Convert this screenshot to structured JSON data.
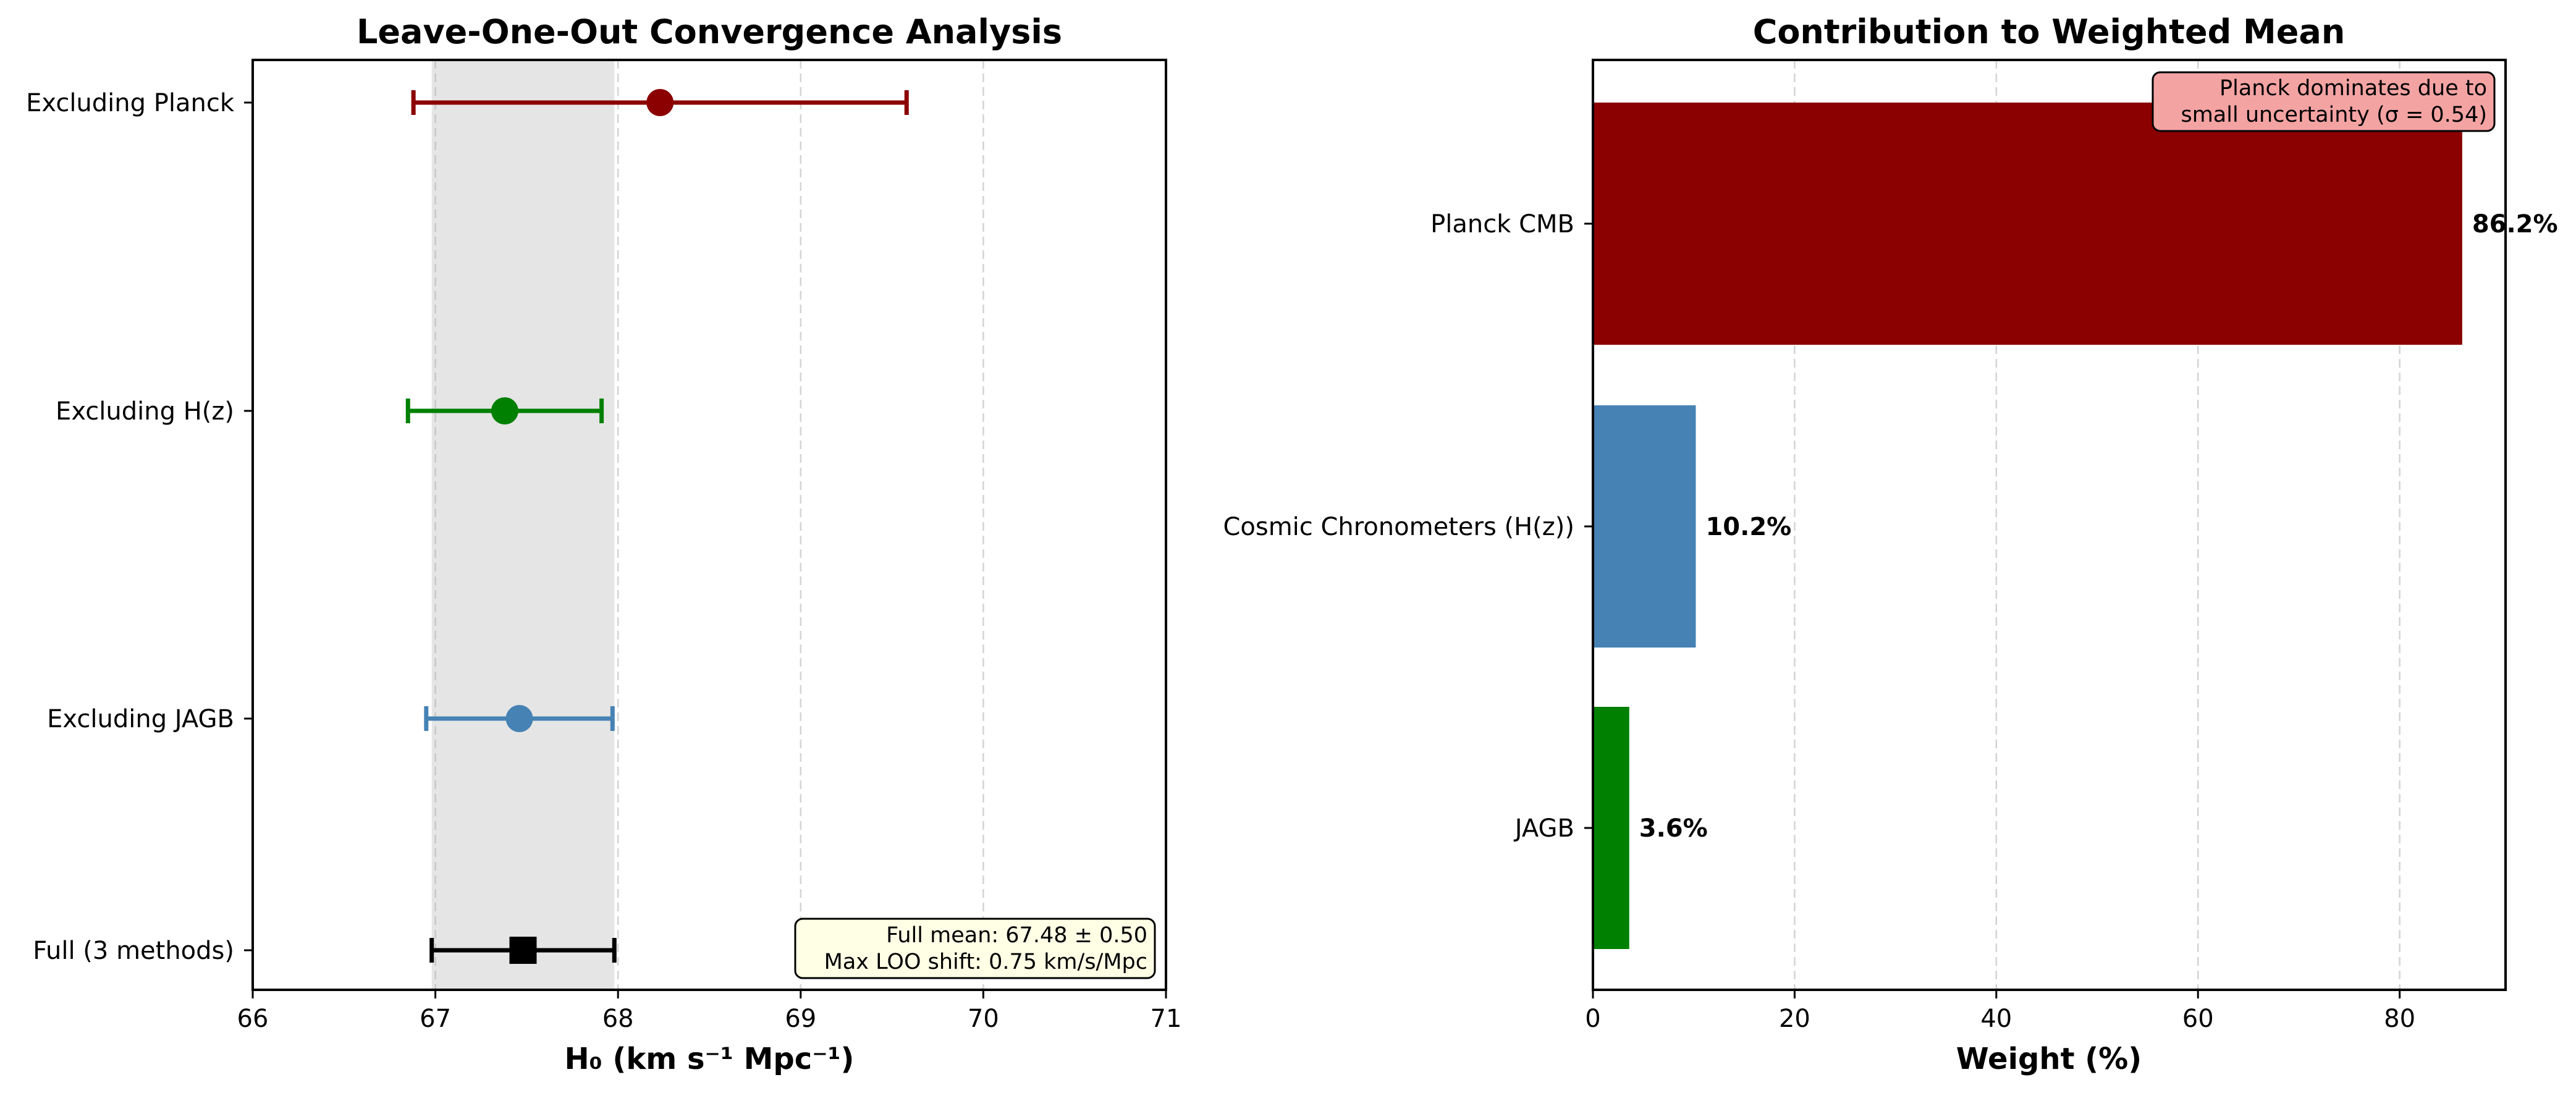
{
  "chart_data": [
    {
      "type": "scatter",
      "title": "Leave-One-Out Convergence Analysis",
      "xlabel": "H₀ (km s⁻¹ Mpc⁻¹)",
      "ylabel": "",
      "xlim": [
        66,
        71
      ],
      "xticks": [
        "66",
        "67",
        "68",
        "69",
        "70",
        "71"
      ],
      "grid": "x-dashed",
      "band": {
        "from": 66.98,
        "to": 67.98,
        "color": "#e5e5e5"
      },
      "points": [
        {
          "label": "Excluding Planck",
          "value": 68.23,
          "low": 66.88,
          "high": 69.58,
          "color": "#8b0000",
          "marker": "circle"
        },
        {
          "label": "Excluding H(z)",
          "value": 67.38,
          "low": 66.85,
          "high": 67.91,
          "color": "#008000",
          "marker": "circle"
        },
        {
          "label": "Excluding JAGB",
          "value": 67.46,
          "low": 66.95,
          "high": 67.97,
          "color": "#4682b4",
          "marker": "circle"
        },
        {
          "label": "Full (3 methods)",
          "value": 67.48,
          "low": 66.98,
          "high": 67.98,
          "color": "#000000",
          "marker": "square"
        }
      ],
      "annotation": {
        "lines": [
          "Full mean: 67.48 ± 0.50",
          "Max LOO shift: 0.75 km/s/Mpc"
        ],
        "placement": "bottom-right",
        "bg": "#ffffe6"
      }
    },
    {
      "type": "bar",
      "orientation": "horizontal",
      "title": "Contribution to Weighted Mean",
      "xlabel": "Weight (%)",
      "ylabel": "",
      "xlim": [
        0,
        90.5
      ],
      "xticks": [
        0,
        20,
        40,
        60,
        80
      ],
      "grid": "x-dashed",
      "categories": [
        "Planck CMB",
        "Cosmic Chronometers (H(z))",
        "JAGB"
      ],
      "values": [
        86.2,
        10.2,
        3.6
      ],
      "value_labels": [
        "86.2%",
        "10.2%",
        "3.6%"
      ],
      "colors": [
        "#8b0000",
        "#4682b4",
        "#008000"
      ],
      "annotation": {
        "lines": [
          "Planck dominates due to",
          "small uncertainty (σ = 0.54)"
        ],
        "placement": "top-right",
        "bg": "#f4a3a3"
      }
    }
  ]
}
